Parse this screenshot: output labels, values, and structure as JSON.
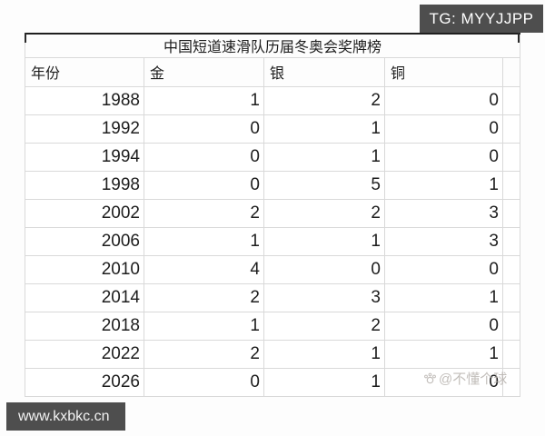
{
  "badges": {
    "telegram": "TG: MYYJJPP",
    "website": "www.kxbkc.cn"
  },
  "table": {
    "title": "中国短道速滑队历届冬奥会奖牌榜",
    "columns": [
      "年份",
      "金",
      "银",
      "铜"
    ],
    "rows": [
      {
        "year": "1988",
        "gold": "1",
        "silver": "2",
        "bronze": "0"
      },
      {
        "year": "1992",
        "gold": "0",
        "silver": "1",
        "bronze": "0"
      },
      {
        "year": "1994",
        "gold": "0",
        "silver": "1",
        "bronze": "0"
      },
      {
        "year": "1998",
        "gold": "0",
        "silver": "5",
        "bronze": "1"
      },
      {
        "year": "2002",
        "gold": "2",
        "silver": "2",
        "bronze": "3"
      },
      {
        "year": "2006",
        "gold": "1",
        "silver": "1",
        "bronze": "3"
      },
      {
        "year": "2010",
        "gold": "4",
        "silver": "0",
        "bronze": "0"
      },
      {
        "year": "2014",
        "gold": "2",
        "silver": "3",
        "bronze": "1"
      },
      {
        "year": "2018",
        "gold": "1",
        "silver": "2",
        "bronze": "0"
      },
      {
        "year": "2022",
        "gold": "2",
        "silver": "1",
        "bronze": "1"
      },
      {
        "year": "2026",
        "gold": "0",
        "silver": "1",
        "bronze": "0"
      }
    ]
  },
  "watermark": {
    "icon": "paw-ball-icon",
    "text": "@不懂个球"
  },
  "chart_data": {
    "type": "table",
    "title": "中国短道速滑队历届冬奥会奖牌榜",
    "columns": [
      "年份",
      "金",
      "银",
      "铜"
    ],
    "rows": [
      [
        1988,
        1,
        2,
        0
      ],
      [
        1992,
        0,
        1,
        0
      ],
      [
        1994,
        0,
        1,
        0
      ],
      [
        1998,
        0,
        5,
        1
      ],
      [
        2002,
        2,
        2,
        3
      ],
      [
        2006,
        1,
        1,
        3
      ],
      [
        2010,
        4,
        0,
        0
      ],
      [
        2014,
        2,
        3,
        1
      ],
      [
        2018,
        1,
        2,
        0
      ],
      [
        2022,
        2,
        1,
        1
      ],
      [
        2026,
        0,
        1,
        0
      ]
    ],
    "layout": {
      "grid": true,
      "header_position": "top",
      "title_merged_across_columns": true
    }
  },
  "colors": {
    "badge_bg": "#4e4e4e",
    "grid_line": "#d9d9d9",
    "table_top_border": "#1f1f1f",
    "text": "#1d1d1d",
    "watermark": "#b3aeaa"
  }
}
